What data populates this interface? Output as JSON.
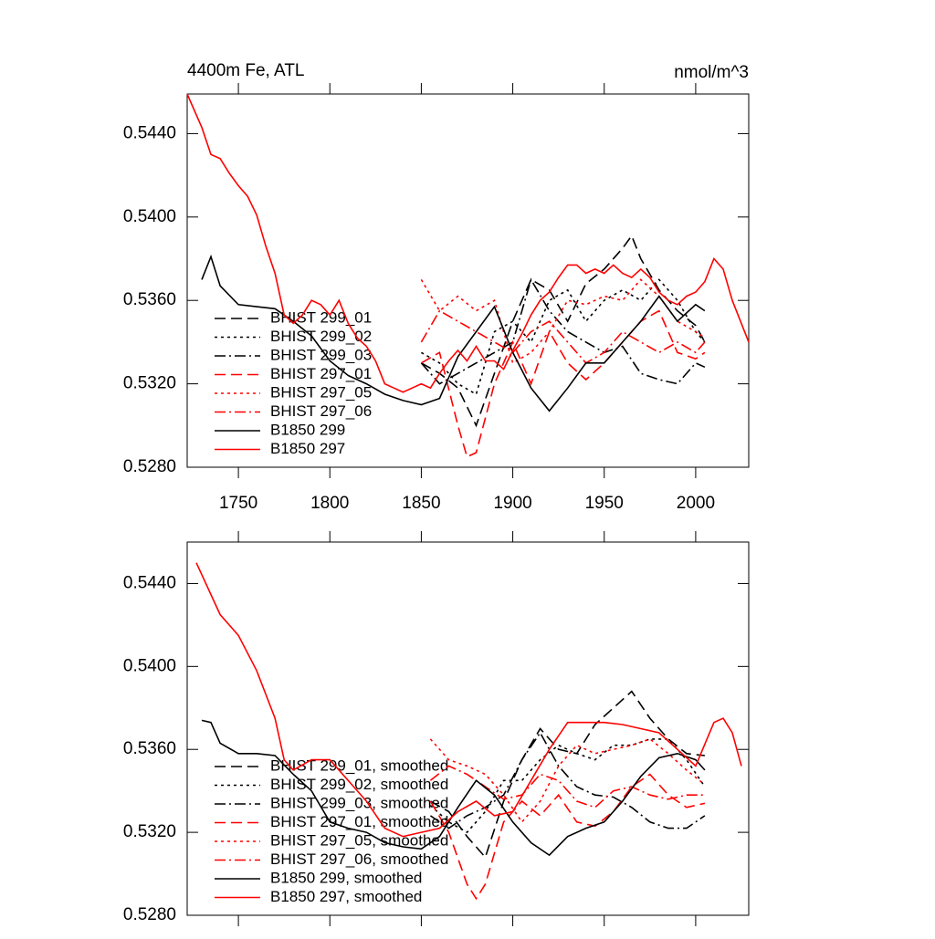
{
  "chart_data": [
    {
      "type": "line",
      "title": "4400m Fe, ATL",
      "units": "nmol/m^3",
      "xlim": [
        1722,
        2029
      ],
      "ylim": [
        0.528,
        0.5459
      ],
      "xticks": [
        1750,
        1800,
        1850,
        1900,
        1950,
        2000
      ],
      "xtick_labels": true,
      "yticks": [
        {
          "value": 0.528,
          "label": "0.5280"
        },
        {
          "value": 0.532,
          "label": "0.5320"
        },
        {
          "value": 0.536,
          "label": "0.5360"
        },
        {
          "value": 0.54,
          "label": "0.5400"
        },
        {
          "value": 0.544,
          "label": "0.5440"
        }
      ],
      "series": [
        {
          "name": "BHIST 299_01",
          "color": "#000000",
          "dash": "dashed",
          "x": [
            1850,
            1860,
            1870,
            1880,
            1890,
            1900,
            1910,
            1920,
            1930,
            1940,
            1950,
            1960,
            1965,
            1970,
            1980,
            1990,
            2000,
            2005
          ],
          "values": [
            0.533,
            0.5325,
            0.5318,
            0.53,
            0.5325,
            0.535,
            0.537,
            0.5365,
            0.535,
            0.5368,
            0.5375,
            0.5385,
            0.5391,
            0.538,
            0.5365,
            0.5355,
            0.5348,
            0.534
          ]
        },
        {
          "name": "BHIST 299_02",
          "color": "#000000",
          "dash": "dotted",
          "x": [
            1850,
            1860,
            1870,
            1880,
            1890,
            1900,
            1910,
            1920,
            1930,
            1940,
            1950,
            1960,
            1970,
            1980,
            1990,
            2000,
            2005
          ],
          "values": [
            0.5335,
            0.533,
            0.532,
            0.5315,
            0.5345,
            0.535,
            0.534,
            0.536,
            0.5365,
            0.535,
            0.536,
            0.5365,
            0.536,
            0.537,
            0.536,
            0.5345,
            0.534
          ]
        },
        {
          "name": "BHIST 299_03",
          "color": "#000000",
          "dash": "dashdot",
          "x": [
            1850,
            1860,
            1870,
            1880,
            1890,
            1900,
            1910,
            1920,
            1930,
            1940,
            1950,
            1960,
            1970,
            1980,
            1990,
            2000,
            2005
          ],
          "values": [
            0.533,
            0.532,
            0.5325,
            0.533,
            0.5335,
            0.534,
            0.537,
            0.5355,
            0.5345,
            0.534,
            0.5335,
            0.5338,
            0.5325,
            0.5322,
            0.532,
            0.533,
            0.5328
          ]
        },
        {
          "name": "BHIST 297_01",
          "color": "#ff0000",
          "dash": "dashed",
          "x": [
            1850,
            1860,
            1870,
            1875,
            1880,
            1890,
            1900,
            1910,
            1920,
            1930,
            1940,
            1950,
            1960,
            1970,
            1980,
            1990,
            2000,
            2005
          ],
          "values": [
            0.533,
            0.5335,
            0.53,
            0.5285,
            0.5287,
            0.532,
            0.534,
            0.532,
            0.5345,
            0.533,
            0.5322,
            0.533,
            0.534,
            0.535,
            0.5355,
            0.5335,
            0.5332,
            0.5335
          ]
        },
        {
          "name": "BHIST 297_05",
          "color": "#ff0000",
          "dash": "dotted",
          "x": [
            1850,
            1860,
            1870,
            1880,
            1890,
            1900,
            1910,
            1920,
            1930,
            1940,
            1950,
            1960,
            1970,
            1980,
            1990,
            2000,
            2005
          ],
          "values": [
            0.537,
            0.5355,
            0.5362,
            0.5355,
            0.536,
            0.533,
            0.5335,
            0.5345,
            0.536,
            0.5358,
            0.5362,
            0.536,
            0.537,
            0.5362,
            0.535,
            0.5345,
            0.5342
          ]
        },
        {
          "name": "BHIST 297_06",
          "color": "#ff0000",
          "dash": "dashdot",
          "x": [
            1850,
            1860,
            1870,
            1880,
            1890,
            1900,
            1910,
            1920,
            1930,
            1940,
            1950,
            1960,
            1970,
            1980,
            1990,
            2000,
            2005
          ],
          "values": [
            0.534,
            0.5355,
            0.535,
            0.5345,
            0.534,
            0.5335,
            0.5345,
            0.535,
            0.534,
            0.533,
            0.5335,
            0.5345,
            0.534,
            0.5335,
            0.534,
            0.5335,
            0.534
          ]
        },
        {
          "name": "B1850 299",
          "color": "#000000",
          "dash": "solid",
          "x": [
            1730,
            1735,
            1740,
            1750,
            1760,
            1770,
            1780,
            1790,
            1800,
            1810,
            1820,
            1830,
            1840,
            1850,
            1860,
            1870,
            1880,
            1890,
            1900,
            1910,
            1920,
            1930,
            1940,
            1950,
            1960,
            1970,
            1980,
            1990,
            2000,
            2005
          ],
          "values": [
            0.537,
            0.5381,
            0.5367,
            0.5358,
            0.5357,
            0.5356,
            0.535,
            0.5343,
            0.5331,
            0.5324,
            0.532,
            0.5315,
            0.5312,
            0.531,
            0.5313,
            0.5333,
            0.5345,
            0.5357,
            0.5335,
            0.5318,
            0.5307,
            0.5318,
            0.533,
            0.533,
            0.534,
            0.535,
            0.5362,
            0.535,
            0.5358,
            0.5355
          ]
        },
        {
          "name": "B1850 297",
          "color": "#ff0000",
          "dash": "solid",
          "x": [
            1722,
            1730,
            1735,
            1740,
            1745,
            1750,
            1755,
            1760,
            1765,
            1770,
            1775,
            1780,
            1785,
            1790,
            1795,
            1800,
            1805,
            1810,
            1815,
            1820,
            1825,
            1830,
            1835,
            1840,
            1845,
            1850,
            1855,
            1860,
            1865,
            1870,
            1875,
            1880,
            1885,
            1890,
            1895,
            1900,
            1905,
            1910,
            1915,
            1920,
            1925,
            1930,
            1935,
            1940,
            1945,
            1950,
            1955,
            1960,
            1965,
            1970,
            1975,
            1980,
            1985,
            1990,
            1995,
            2000,
            2005,
            2010,
            2015,
            2020,
            2029
          ],
          "values": [
            0.5459,
            0.5443,
            0.543,
            0.5428,
            0.5421,
            0.5415,
            0.541,
            0.5401,
            0.5386,
            0.5373,
            0.5353,
            0.5349,
            0.5353,
            0.536,
            0.5358,
            0.5353,
            0.536,
            0.5349,
            0.5342,
            0.5338,
            0.5331,
            0.532,
            0.5318,
            0.5316,
            0.5318,
            0.532,
            0.5318,
            0.5325,
            0.5331,
            0.5336,
            0.5331,
            0.5338,
            0.5331,
            0.5331,
            0.5327,
            0.5336,
            0.5344,
            0.5353,
            0.536,
            0.5364,
            0.5371,
            0.5377,
            0.5377,
            0.5373,
            0.5375,
            0.5373,
            0.5377,
            0.5373,
            0.5371,
            0.5375,
            0.5371,
            0.5364,
            0.536,
            0.5358,
            0.5362,
            0.5364,
            0.5369,
            0.538,
            0.5375,
            0.536,
            0.534
          ]
        }
      ]
    },
    {
      "type": "line",
      "xlim": [
        1722,
        2029
      ],
      "ylim": [
        0.528,
        0.546
      ],
      "xticks": [
        1750,
        1800,
        1850,
        1900,
        1950,
        2000
      ],
      "xtick_labels": false,
      "yticks": [
        {
          "value": 0.528,
          "label": "0.5280"
        },
        {
          "value": 0.532,
          "label": "0.5320"
        },
        {
          "value": 0.536,
          "label": "0.5360"
        },
        {
          "value": 0.54,
          "label": "0.5400"
        },
        {
          "value": 0.544,
          "label": "0.5440"
        }
      ],
      "series": [
        {
          "name": "BHIST 299_01, smoothed",
          "color": "#000000",
          "dash": "dashed",
          "x": [
            1855,
            1865,
            1875,
            1885,
            1895,
            1905,
            1915,
            1925,
            1935,
            1945,
            1955,
            1965,
            1975,
            1985,
            1995,
            2005
          ],
          "values": [
            0.5335,
            0.533,
            0.5318,
            0.5308,
            0.5335,
            0.5355,
            0.537,
            0.536,
            0.5358,
            0.5372,
            0.538,
            0.5388,
            0.5375,
            0.5365,
            0.5358,
            0.5357
          ]
        },
        {
          "name": "BHIST 299_02, smoothed",
          "color": "#000000",
          "dash": "dotted",
          "x": [
            1855,
            1865,
            1875,
            1885,
            1895,
            1905,
            1915,
            1925,
            1935,
            1945,
            1955,
            1965,
            1975,
            1985,
            1995,
            2005
          ],
          "values": [
            0.5333,
            0.5325,
            0.532,
            0.533,
            0.5345,
            0.5345,
            0.5355,
            0.5362,
            0.5358,
            0.5355,
            0.5362,
            0.5362,
            0.5365,
            0.5365,
            0.5355,
            0.5342
          ]
        },
        {
          "name": "BHIST 299_03, smoothed",
          "color": "#000000",
          "dash": "dashdot",
          "x": [
            1855,
            1865,
            1875,
            1885,
            1895,
            1905,
            1915,
            1925,
            1935,
            1945,
            1955,
            1965,
            1975,
            1985,
            1995,
            2005
          ],
          "values": [
            0.5328,
            0.5322,
            0.5328,
            0.5332,
            0.5338,
            0.5355,
            0.5368,
            0.5352,
            0.5342,
            0.5338,
            0.5337,
            0.5332,
            0.5325,
            0.5322,
            0.5322,
            0.5328
          ]
        },
        {
          "name": "BHIST 297_01, smoothed",
          "color": "#ff0000",
          "dash": "dashed",
          "x": [
            1855,
            1865,
            1875,
            1880,
            1885,
            1895,
            1905,
            1915,
            1925,
            1935,
            1945,
            1955,
            1965,
            1975,
            1985,
            1995,
            2005
          ],
          "values": [
            0.5335,
            0.532,
            0.5295,
            0.5288,
            0.5295,
            0.5325,
            0.5335,
            0.5328,
            0.5338,
            0.5325,
            0.5323,
            0.533,
            0.5342,
            0.5348,
            0.5338,
            0.5332,
            0.5334
          ]
        },
        {
          "name": "BHIST 297_05, smoothed",
          "color": "#ff0000",
          "dash": "dotted",
          "x": [
            1855,
            1865,
            1875,
            1885,
            1895,
            1905,
            1915,
            1925,
            1935,
            1945,
            1955,
            1965,
            1975,
            1985,
            1995,
            2005
          ],
          "values": [
            0.5365,
            0.5355,
            0.5352,
            0.5348,
            0.5338,
            0.5325,
            0.5335,
            0.5352,
            0.5362,
            0.5358,
            0.536,
            0.5362,
            0.5365,
            0.5358,
            0.535,
            0.5343
          ]
        },
        {
          "name": "BHIST 297_06, smoothed",
          "color": "#ff0000",
          "dash": "dashdot",
          "x": [
            1855,
            1865,
            1875,
            1885,
            1895,
            1905,
            1915,
            1925,
            1935,
            1945,
            1955,
            1965,
            1975,
            1985,
            1995,
            2005
          ],
          "values": [
            0.5345,
            0.5352,
            0.5348,
            0.5342,
            0.5336,
            0.5338,
            0.5348,
            0.5345,
            0.5335,
            0.5332,
            0.534,
            0.5342,
            0.5338,
            0.5336,
            0.5338,
            0.5338
          ]
        },
        {
          "name": "B1850 299, smoothed",
          "color": "#000000",
          "dash": "solid",
          "x": [
            1730,
            1735,
            1740,
            1750,
            1760,
            1770,
            1780,
            1790,
            1800,
            1810,
            1820,
            1830,
            1840,
            1850,
            1860,
            1870,
            1880,
            1890,
            1900,
            1910,
            1920,
            1930,
            1940,
            1950,
            1960,
            1970,
            1980,
            1990,
            2000,
            2005
          ],
          "values": [
            0.5374,
            0.5373,
            0.5363,
            0.5358,
            0.5358,
            0.5357,
            0.5348,
            0.534,
            0.5325,
            0.5322,
            0.532,
            0.5315,
            0.5313,
            0.5312,
            0.5318,
            0.5332,
            0.5345,
            0.5338,
            0.5325,
            0.5315,
            0.5309,
            0.5318,
            0.5322,
            0.5325,
            0.5335,
            0.5347,
            0.5356,
            0.5358,
            0.5355,
            0.535
          ]
        },
        {
          "name": "B1850 297, smoothed",
          "color": "#ff0000",
          "dash": "solid",
          "x": [
            1727,
            1740,
            1750,
            1760,
            1770,
            1775,
            1780,
            1790,
            1800,
            1810,
            1820,
            1830,
            1840,
            1850,
            1860,
            1870,
            1880,
            1890,
            1900,
            1910,
            1920,
            1930,
            1940,
            1950,
            1960,
            1970,
            1980,
            1990,
            2000,
            2010,
            2015,
            2020,
            2025
          ],
          "values": [
            0.545,
            0.5425,
            0.5415,
            0.5398,
            0.5375,
            0.5355,
            0.535,
            0.5355,
            0.5355,
            0.5345,
            0.5335,
            0.5322,
            0.5318,
            0.532,
            0.5322,
            0.533,
            0.5335,
            0.5328,
            0.533,
            0.5345,
            0.536,
            0.5373,
            0.5373,
            0.5373,
            0.5372,
            0.537,
            0.5368,
            0.536,
            0.5352,
            0.5373,
            0.5375,
            0.5368,
            0.5352
          ]
        }
      ]
    }
  ]
}
